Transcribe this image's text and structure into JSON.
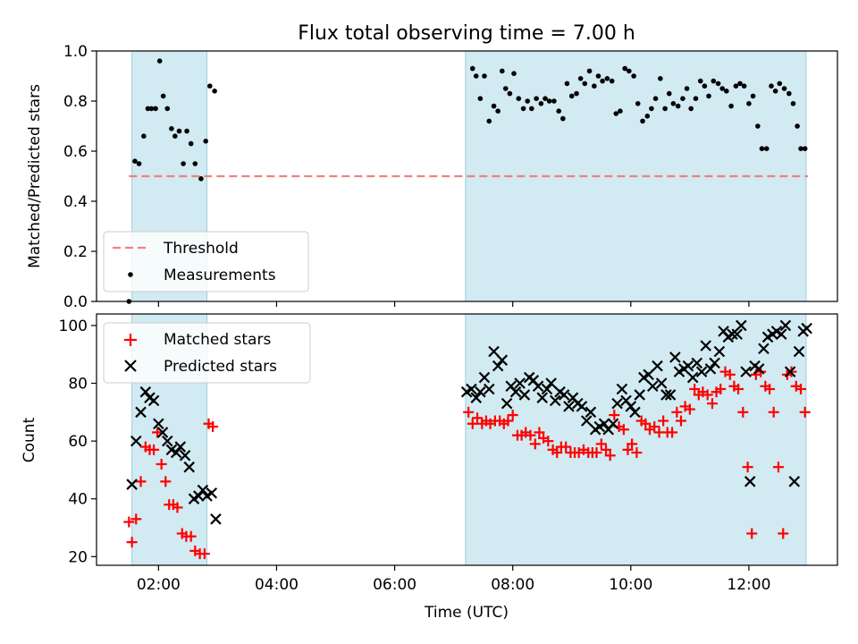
{
  "chart_data": {
    "type": "scatter",
    "title": "Flux total observing time = 7.00 h",
    "xlabel": "Time (UTC)",
    "x_unit": "hours UTC",
    "xlim": [
      0.95,
      13.5
    ],
    "x_ticks": [
      {
        "value": 2,
        "label": "02:00"
      },
      {
        "value": 4,
        "label": "04:00"
      },
      {
        "value": 6,
        "label": "06:00"
      },
      {
        "value": 8,
        "label": "08:00"
      },
      {
        "value": 10,
        "label": "10:00"
      },
      {
        "value": 12,
        "label": "12:00"
      }
    ],
    "shaded_intervals": [
      [
        1.55,
        2.82
      ],
      [
        7.2,
        12.97
      ]
    ],
    "top": {
      "ylabel": "Matched/Predicted stars",
      "ylim": [
        0,
        1.0
      ],
      "y_ticks": [
        {
          "value": 0.0,
          "label": "0.0"
        },
        {
          "value": 0.2,
          "label": "0.2"
        },
        {
          "value": 0.4,
          "label": "0.4"
        },
        {
          "value": 0.6,
          "label": "0.6"
        },
        {
          "value": 0.8,
          "label": "0.8"
        },
        {
          "value": 1.0,
          "label": "1.0"
        }
      ],
      "threshold": {
        "value": 0.5,
        "x_range": [
          1.5,
          13.0
        ],
        "color": "#f08080"
      },
      "legend": [
        {
          "label": "Threshold",
          "kind": "dashed-line",
          "color": "#f08080"
        },
        {
          "label": "Measurements",
          "kind": "dot",
          "color": "#000000"
        }
      ],
      "legend_position": "lower-left",
      "measurements": {
        "x": [
          1.5,
          1.6,
          1.67,
          1.75,
          1.82,
          1.88,
          1.95,
          2.02,
          2.08,
          2.15,
          2.22,
          2.28,
          2.35,
          2.42,
          2.48,
          2.55,
          2.62,
          2.72,
          2.8,
          2.87,
          2.95,
          7.32,
          7.38,
          7.45,
          7.52,
          7.6,
          7.68,
          7.75,
          7.82,
          7.88,
          7.95,
          8.02,
          8.1,
          8.18,
          8.25,
          8.32,
          8.4,
          8.48,
          8.55,
          8.62,
          8.7,
          8.78,
          8.85,
          8.92,
          9.0,
          9.08,
          9.15,
          9.22,
          9.3,
          9.38,
          9.45,
          9.52,
          9.6,
          9.68,
          9.75,
          9.82,
          9.9,
          9.97,
          10.05,
          10.12,
          10.2,
          10.28,
          10.35,
          10.42,
          10.5,
          10.58,
          10.65,
          10.72,
          10.8,
          10.88,
          10.95,
          11.02,
          11.1,
          11.18,
          11.25,
          11.32,
          11.4,
          11.48,
          11.55,
          11.62,
          11.7,
          11.78,
          11.85,
          11.92,
          12.0,
          12.07,
          12.15,
          12.22,
          12.3,
          12.38,
          12.45,
          12.52,
          12.6,
          12.68,
          12.75,
          12.82,
          12.88,
          12.95
        ],
        "y": [
          0.0,
          0.56,
          0.55,
          0.66,
          0.77,
          0.77,
          0.77,
          0.96,
          0.82,
          0.77,
          0.69,
          0.66,
          0.68,
          0.55,
          0.68,
          0.63,
          0.55,
          0.49,
          0.64,
          0.86,
          0.84,
          0.93,
          0.9,
          0.81,
          0.9,
          0.72,
          0.78,
          0.76,
          0.92,
          0.85,
          0.83,
          0.91,
          0.81,
          0.77,
          0.8,
          0.77,
          0.81,
          0.79,
          0.81,
          0.8,
          0.8,
          0.76,
          0.73,
          0.87,
          0.82,
          0.83,
          0.89,
          0.87,
          0.92,
          0.86,
          0.9,
          0.88,
          0.89,
          0.88,
          0.75,
          0.76,
          0.93,
          0.92,
          0.9,
          0.79,
          0.72,
          0.74,
          0.77,
          0.81,
          0.89,
          0.77,
          0.83,
          0.79,
          0.78,
          0.81,
          0.85,
          0.77,
          0.81,
          0.88,
          0.86,
          0.82,
          0.88,
          0.87,
          0.85,
          0.84,
          0.78,
          0.86,
          0.87,
          0.86,
          0.79,
          0.82,
          0.7,
          0.61,
          0.61,
          0.86,
          0.84,
          0.87,
          0.85,
          0.83,
          0.79,
          0.7,
          0.61,
          0.61
        ]
      }
    },
    "bottom": {
      "ylabel": "Count",
      "ylim": [
        17,
        104
      ],
      "y_ticks": [
        {
          "value": 20,
          "label": "20"
        },
        {
          "value": 40,
          "label": "40"
        },
        {
          "value": 60,
          "label": "60"
        },
        {
          "value": 80,
          "label": "80"
        },
        {
          "value": 100,
          "label": "100"
        }
      ],
      "legend": [
        {
          "label": "Matched stars",
          "kind": "plus",
          "color": "#ff0000"
        },
        {
          "label": "Predicted stars",
          "kind": "cross",
          "color": "#000000"
        }
      ],
      "legend_position": "upper-left",
      "matched": {
        "x": [
          1.5,
          1.55,
          1.62,
          1.7,
          1.78,
          1.85,
          1.92,
          1.98,
          2.05,
          2.12,
          2.18,
          2.25,
          2.32,
          2.4,
          2.47,
          2.55,
          2.62,
          2.7,
          2.78,
          2.85,
          2.92,
          7.25,
          7.32,
          7.4,
          7.48,
          7.55,
          7.62,
          7.7,
          7.78,
          7.85,
          7.92,
          8.0,
          8.08,
          8.15,
          8.22,
          8.3,
          8.38,
          8.45,
          8.52,
          8.6,
          8.68,
          8.75,
          8.82,
          8.9,
          8.98,
          9.05,
          9.12,
          9.2,
          9.28,
          9.35,
          9.42,
          9.5,
          9.58,
          9.65,
          9.72,
          9.8,
          9.88,
          9.95,
          10.02,
          10.1,
          10.18,
          10.25,
          10.32,
          10.4,
          10.48,
          10.55,
          10.62,
          10.7,
          10.78,
          10.85,
          10.92,
          11.0,
          11.08,
          11.15,
          11.22,
          11.3,
          11.38,
          11.45,
          11.52,
          11.6,
          11.68,
          11.75,
          11.82,
          11.9,
          11.98,
          12.05,
          12.12,
          12.2,
          12.28,
          12.35,
          12.42,
          12.5,
          12.58,
          12.65,
          12.72,
          12.8,
          12.88,
          12.95
        ],
        "y": [
          32,
          25,
          33,
          46,
          58,
          57,
          57,
          63,
          52,
          46,
          38,
          38,
          37,
          28,
          27,
          27,
          22,
          21,
          21,
          66,
          65,
          70,
          66,
          68,
          66,
          67,
          66,
          67,
          67,
          66,
          67,
          69,
          62,
          62,
          63,
          62,
          59,
          63,
          61,
          60,
          57,
          56,
          58,
          58,
          56,
          56,
          56,
          57,
          56,
          56,
          56,
          59,
          57,
          55,
          69,
          65,
          64,
          57,
          59,
          56,
          67,
          66,
          64,
          65,
          63,
          67,
          63,
          63,
          70,
          67,
          72,
          71,
          78,
          76,
          77,
          76,
          73,
          77,
          78,
          84,
          83,
          79,
          78,
          70,
          51,
          28,
          83,
          84,
          79,
          78,
          70,
          51,
          28,
          83,
          84,
          79,
          78,
          70
        ]
      },
      "predicted": {
        "x": [
          1.55,
          1.62,
          1.7,
          1.78,
          1.85,
          1.92,
          2.0,
          2.07,
          2.15,
          2.22,
          2.3,
          2.37,
          2.45,
          2.52,
          2.6,
          2.68,
          2.75,
          2.82,
          2.9,
          2.97,
          7.22,
          7.3,
          7.38,
          7.45,
          7.52,
          7.6,
          7.68,
          7.75,
          7.82,
          7.9,
          7.97,
          8.05,
          8.12,
          8.2,
          8.28,
          8.35,
          8.43,
          8.5,
          8.58,
          8.65,
          8.72,
          8.8,
          8.87,
          8.95,
          9.02,
          9.1,
          9.17,
          9.25,
          9.32,
          9.4,
          9.47,
          9.55,
          9.62,
          9.7,
          9.77,
          9.85,
          9.92,
          10.0,
          10.07,
          10.15,
          10.22,
          10.3,
          10.37,
          10.45,
          10.52,
          10.6,
          10.67,
          10.75,
          10.82,
          10.9,
          10.97,
          11.05,
          11.12,
          11.2,
          11.27,
          11.35,
          11.42,
          11.5,
          11.57,
          11.65,
          11.72,
          11.8,
          11.87,
          11.95,
          12.02,
          12.1,
          12.17,
          12.25,
          12.32,
          12.4,
          12.47,
          12.55,
          12.62,
          12.7,
          12.77,
          12.85,
          12.92,
          12.98
        ],
        "y": [
          45,
          60,
          70,
          77,
          75,
          74,
          66,
          63,
          60,
          57,
          56,
          58,
          55,
          51,
          40,
          41,
          43,
          41,
          42,
          33,
          77,
          78,
          75,
          77,
          82,
          78,
          91,
          86,
          88,
          73,
          79,
          77,
          80,
          76,
          82,
          81,
          79,
          75,
          78,
          80,
          74,
          77,
          76,
          72,
          75,
          73,
          72,
          67,
          70,
          64,
          65,
          66,
          64,
          66,
          73,
          78,
          74,
          72,
          70,
          76,
          82,
          83,
          79,
          86,
          80,
          76,
          76,
          89,
          84,
          85,
          86,
          82,
          87,
          84,
          93,
          85,
          87,
          91,
          98,
          96,
          97,
          97,
          100,
          84,
          46,
          86,
          85,
          92,
          96,
          97,
          98,
          97,
          100,
          84,
          46,
          91,
          98,
          99
        ]
      }
    }
  }
}
